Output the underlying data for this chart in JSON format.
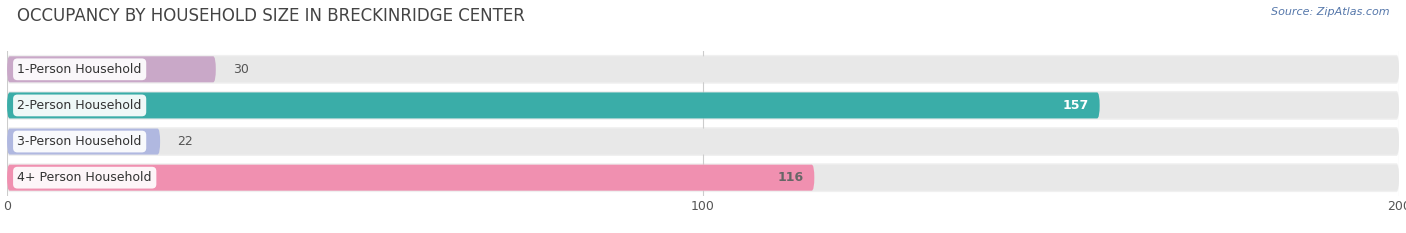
{
  "title": "OCCUPANCY BY HOUSEHOLD SIZE IN BRECKINRIDGE CENTER",
  "source": "Source: ZipAtlas.com",
  "categories": [
    "1-Person Household",
    "2-Person Household",
    "3-Person Household",
    "4+ Person Household"
  ],
  "values": [
    30,
    157,
    22,
    116
  ],
  "bar_colors": [
    "#c9a8c8",
    "#3aada8",
    "#b0b8e0",
    "#f090b0"
  ],
  "bar_label_colors": [
    "#666666",
    "#ffffff",
    "#666666",
    "#666666"
  ],
  "value_inside": [
    false,
    true,
    false,
    true
  ],
  "xlim": [
    0,
    200
  ],
  "xticks": [
    0,
    100,
    200
  ],
  "fig_bg": "#ffffff",
  "bar_bg_color": "#e8e8e8",
  "row_bg_color": "#f0f0f0",
  "title_fontsize": 12,
  "label_fontsize": 9,
  "value_fontsize": 9,
  "tick_fontsize": 9
}
